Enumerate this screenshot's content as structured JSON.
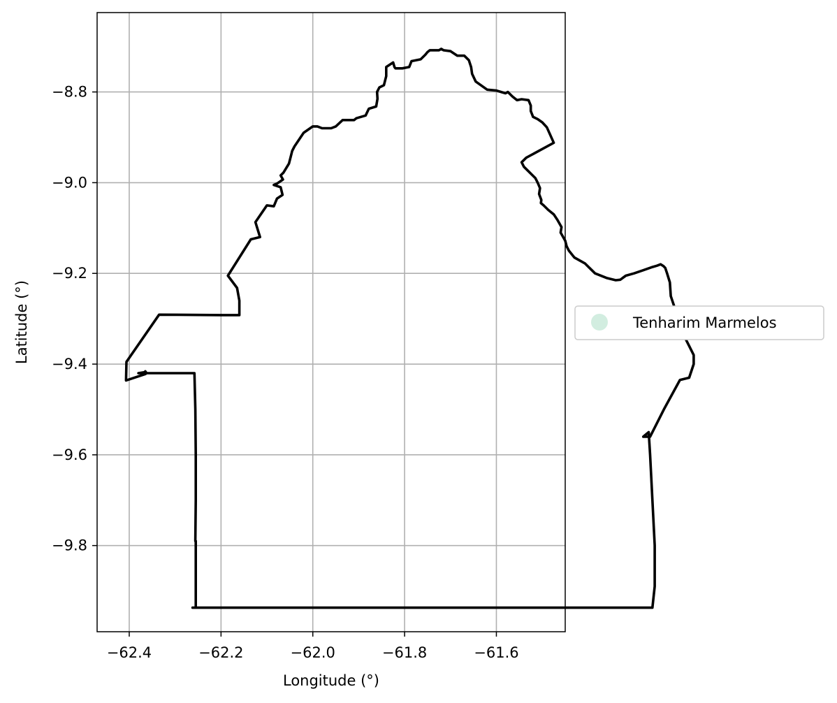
{
  "chart_data": {
    "type": "map",
    "xlabel": "Longitude (°)",
    "ylabel": "Latitude (°)",
    "xlim": [
      -62.47,
      -61.45
    ],
    "ylim": [
      -9.99,
      -8.625
    ],
    "grid": true,
    "x_ticks": [
      -62.4,
      -62.2,
      -62.0,
      -61.8,
      -61.6
    ],
    "x_tick_labels": [
      "−62.4",
      "−62.2",
      "−62.0",
      "−61.8",
      "−61.6"
    ],
    "y_ticks": [
      -8.8,
      -9.0,
      -9.2,
      -9.4,
      -9.6,
      -9.8
    ],
    "y_tick_labels": [
      "−8.8",
      "−9.0",
      "−9.2",
      "−9.4",
      "−9.6",
      "−9.8"
    ],
    "legend": {
      "placement": "center-right outside",
      "entries": [
        {
          "label": "Tenharim Marmelos",
          "color": "#d2ede0"
        }
      ]
    },
    "boundary": {
      "name": "Tenharim Marmelos",
      "edge_color": "#000000",
      "lon": [
        -62.406,
        -62.335,
        -62.2,
        -62.16,
        -62.16,
        -62.165,
        -62.185,
        -62.135,
        -62.115,
        -62.125,
        -62.1,
        -62.085,
        -62.078,
        -62.066,
        -62.07,
        -62.085,
        -62.078,
        -62.065,
        -62.07,
        -62.064,
        -62.052,
        -62.047,
        -62.045,
        -62.04,
        -62.02,
        -62.0,
        -61.99,
        -61.98,
        -61.96,
        -61.95,
        -61.935,
        -61.91,
        -61.905,
        -61.885,
        -61.878,
        -61.862,
        -61.859,
        -61.86,
        -61.855,
        -61.845,
        -61.84,
        -61.84,
        -61.825,
        -61.822,
        -61.82,
        -61.81,
        -61.805,
        -61.79,
        -61.785,
        -61.765,
        -61.755,
        -61.75,
        -61.745,
        -61.735,
        -61.725,
        -61.72,
        -61.715,
        -61.7,
        -61.685,
        -61.67,
        -61.66,
        -61.655,
        -61.653,
        -61.645,
        -61.62,
        -61.6,
        -61.58,
        -61.575,
        -61.565,
        -61.555,
        -61.545,
        -61.53,
        -61.525,
        -61.525,
        -61.52,
        -61.51,
        -61.5,
        -61.49,
        -61.475,
        -61.535,
        -61.545,
        -61.54,
        -61.53,
        -61.515,
        -61.51,
        -61.505,
        -61.507,
        -61.502,
        -61.503,
        -61.497,
        -61.487,
        -61.475,
        -61.467,
        -61.458,
        -61.46,
        -61.45,
        -61.447,
        -61.442,
        -61.43,
        -61.407,
        -61.395,
        -61.385,
        -61.36,
        -61.34,
        -61.33,
        -61.318,
        -61.3,
        -61.28,
        -61.26,
        -61.25,
        -61.242,
        -61.236,
        -61.232,
        -61.228,
        -61.222,
        -61.22,
        -61.21,
        -61.205,
        -61.2,
        -61.19,
        -61.18,
        -61.17,
        -61.17,
        -61.18,
        -61.2,
        -61.235,
        -61.265,
        -61.28,
        -61.268,
        -61.265,
        -61.26,
        -61.255,
        -61.255,
        -61.26,
        -61.28,
        -61.3,
        -61.32,
        -61.335,
        -61.35,
        -61.36,
        -61.36,
        -61.375,
        -61.38,
        -61.39,
        -61.42,
        -61.43,
        -61.47,
        -61.5,
        -61.55,
        -61.6,
        -61.7,
        -61.8,
        -61.9,
        -62.0,
        -62.02,
        -62.1,
        -62.16,
        -62.2,
        -62.26,
        -62.262,
        -62.255,
        -62.255,
        -62.256,
        -62.255,
        -62.255,
        -62.256,
        -62.258,
        -62.36,
        -62.37,
        -62.375,
        -62.38,
        -62.367,
        -62.365,
        -62.362,
        -62.365,
        -62.407
      ],
      "lat": [
        -9.395,
        -9.291,
        -9.292,
        -9.292,
        -9.26,
        -9.232,
        -9.205,
        -9.125,
        -9.12,
        -9.087,
        -9.05,
        -9.052,
        -9.035,
        -9.027,
        -9.01,
        -9.005,
        -9.002,
        -8.993,
        -8.984,
        -8.978,
        -8.958,
        -8.938,
        -8.93,
        -8.92,
        -8.89,
        -8.876,
        -8.876,
        -8.88,
        -8.88,
        -8.876,
        -8.862,
        -8.862,
        -8.858,
        -8.852,
        -8.837,
        -8.832,
        -8.815,
        -8.8,
        -8.79,
        -8.785,
        -8.765,
        -8.745,
        -8.735,
        -8.745,
        -8.748,
        -8.748,
        -8.748,
        -8.745,
        -8.732,
        -8.728,
        -8.718,
        -8.712,
        -8.708,
        -8.708,
        -8.708,
        -8.705,
        -8.708,
        -8.71,
        -8.72,
        -8.72,
        -8.73,
        -8.745,
        -8.76,
        -8.777,
        -8.795,
        -8.797,
        -8.803,
        -8.8,
        -8.81,
        -8.818,
        -8.816,
        -8.818,
        -8.83,
        -8.842,
        -8.855,
        -8.86,
        -8.867,
        -8.878,
        -8.912,
        -8.945,
        -8.955,
        -8.965,
        -8.975,
        -8.99,
        -9.0,
        -9.012,
        -9.025,
        -9.038,
        -9.045,
        -9.05,
        -9.06,
        -9.07,
        -9.082,
        -9.098,
        -9.11,
        -9.128,
        -9.14,
        -9.15,
        -9.165,
        -9.178,
        -9.19,
        -9.2,
        -9.21,
        -9.215,
        -9.214,
        -9.205,
        -9.2,
        -9.193,
        -9.186,
        -9.183,
        -9.18,
        -9.184,
        -9.188,
        -9.2,
        -9.22,
        -9.25,
        -9.28,
        -9.3,
        -9.32,
        -9.34,
        -9.36,
        -9.38,
        -9.4,
        -9.43,
        -9.435,
        -9.5,
        -9.56,
        -9.56,
        -9.55,
        -9.6,
        -9.7,
        -9.8,
        -9.89,
        -9.937,
        -9.937,
        -9.937,
        -9.937,
        -9.937,
        -9.937,
        -9.937,
        -9.937,
        -9.937,
        -9.937,
        -9.937,
        -9.937,
        -9.937,
        -9.937,
        -9.937,
        -9.937,
        -9.937,
        -9.937,
        -9.937,
        -9.937,
        -9.937,
        -9.937,
        -9.937,
        -9.937,
        -9.937,
        -9.937,
        -9.937,
        -9.937,
        -9.79,
        -9.79,
        -9.7,
        -9.6,
        -9.5,
        -9.42,
        -9.42,
        -9.42,
        -9.42,
        -9.42,
        -9.418,
        -9.416,
        -9.42,
        -9.422,
        -9.436,
        -9.436
      ]
    }
  }
}
